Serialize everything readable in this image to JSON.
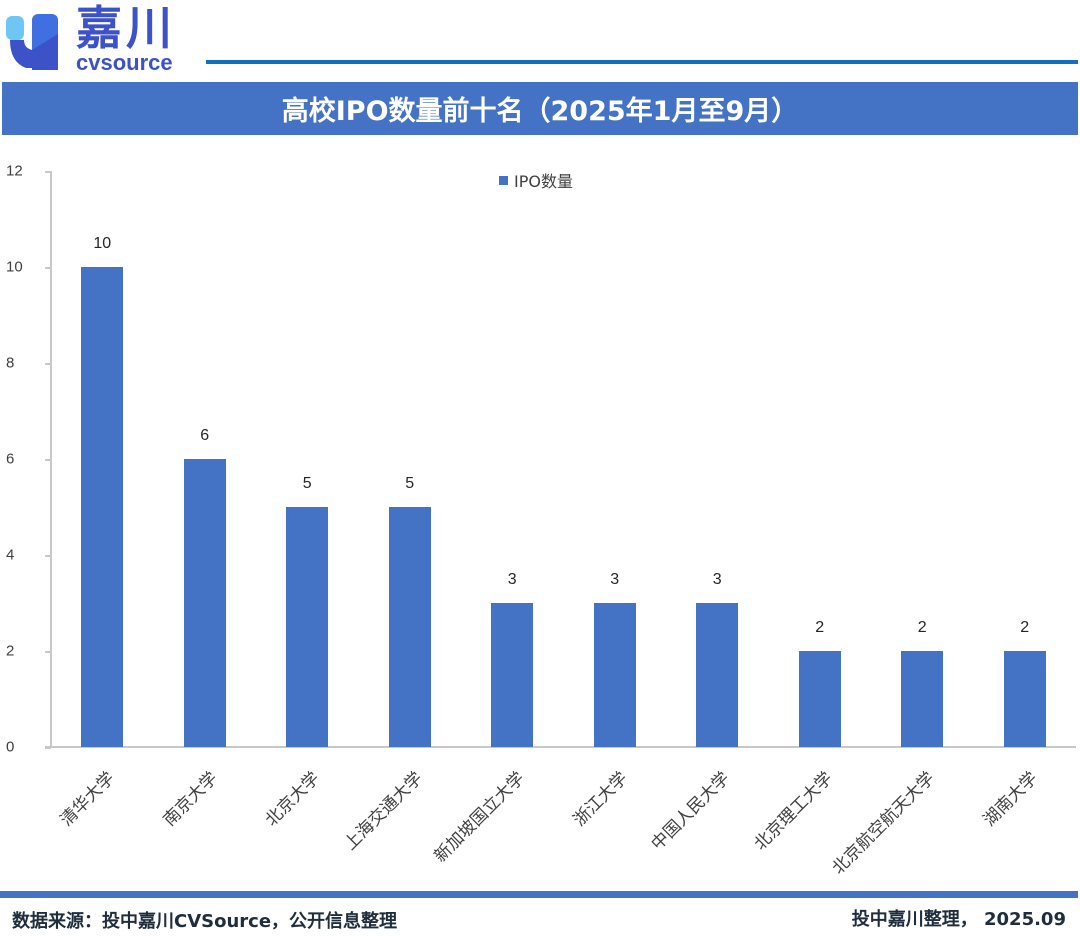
{
  "header": {
    "brand_cn": "嘉川",
    "brand_en": "cvsource",
    "title": "高校IPO数量前十名（2025年1月至9月）"
  },
  "colors": {
    "bar": "#4472c4",
    "title_bar": "#4472c4",
    "header_rule": "#0f6fc0",
    "logo": "#3c52c9"
  },
  "legend": {
    "label": "IPO数量"
  },
  "footer": {
    "source": "数据来源：投中嘉川CVSource，公开信息整理",
    "credit": "投中嘉川整理， 2025.09"
  },
  "chart_data": {
    "type": "bar",
    "title": "高校IPO数量前十名（2025年1月至9月）",
    "xlabel": "",
    "ylabel": "",
    "ylim": [
      0,
      12
    ],
    "yticks": [
      0,
      2,
      4,
      6,
      8,
      10,
      12
    ],
    "grid": false,
    "legend_position": "top",
    "categories": [
      "清华大学",
      "南京大学",
      "北京大学",
      "上海交通大学",
      "新加坡国立大学",
      "浙江大学",
      "中国人民大学",
      "北京理工大学",
      "北京航空航天大学",
      "湖南大学"
    ],
    "series": [
      {
        "name": "IPO数量",
        "values": [
          10,
          6,
          5,
          5,
          3,
          3,
          3,
          2,
          2,
          2
        ]
      }
    ]
  }
}
